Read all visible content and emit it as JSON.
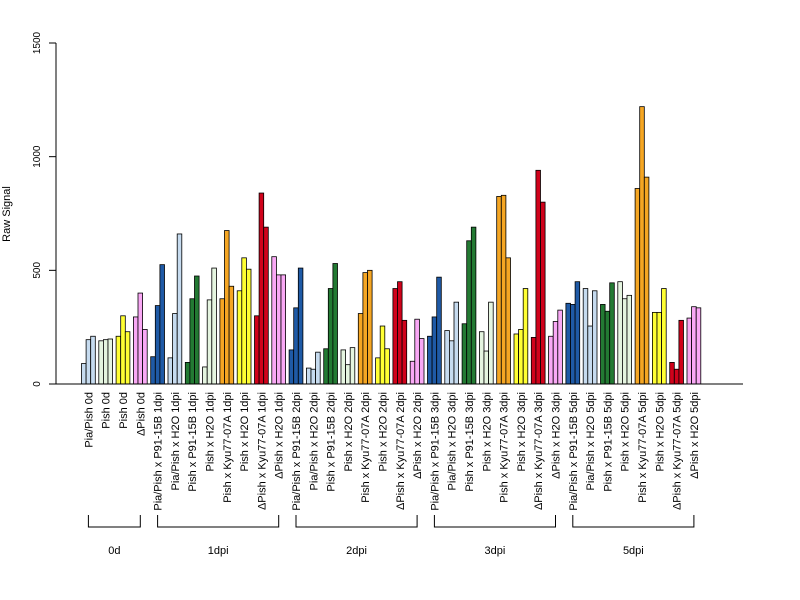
{
  "chart_data": {
    "type": "bar",
    "ylabel": "Raw Signal",
    "ylim": [
      0,
      1500
    ],
    "yticks": [
      0,
      500,
      1000,
      1500
    ],
    "grid": false,
    "legend": "none",
    "replicates_per_group": 3,
    "groups": [
      {
        "label": "Pia/Pish 0d",
        "color": "#c6dbef",
        "values": [
          90,
          195,
          210
        ]
      },
      {
        "label": "Pish 0d",
        "color": "#e5f5e0",
        "values": [
          190,
          195,
          198
        ]
      },
      {
        "label": "Pish 0d",
        "color": "#ffff33",
        "values": [
          210,
          300,
          230
        ]
      },
      {
        "label": "ΔPish 0d",
        "color": "#f9a8f5",
        "values": [
          295,
          400,
          240
        ]
      },
      {
        "label": "Pia/Pish x P91-15B 1dpi",
        "color": "#1f5aa6",
        "values": [
          120,
          345,
          525
        ]
      },
      {
        "label": "Pia/Pish x H2O 1dpi",
        "color": "#c6dbef",
        "values": [
          115,
          310,
          660
        ]
      },
      {
        "label": "Pish x P91-15B 1dpi",
        "color": "#237a33",
        "values": [
          95,
          375,
          475
        ]
      },
      {
        "label": "Pish x H2O 1dpi",
        "color": "#e5f5e0",
        "values": [
          75,
          370,
          510
        ]
      },
      {
        "label": "Pish x Kyu77-07A 1dpi",
        "color": "#f5a623",
        "values": [
          375,
          675,
          430
        ]
      },
      {
        "label": "Pish x H2O 1dpi",
        "color": "#ffff33",
        "values": [
          410,
          555,
          505
        ]
      },
      {
        "label": "ΔPish x Kyu77-07A 1dpi",
        "color": "#d0021b",
        "values": [
          300,
          840,
          690
        ]
      },
      {
        "label": "ΔPish x H2O 1dpi",
        "color": "#f9a8f5",
        "values": [
          560,
          480,
          480
        ]
      },
      {
        "label": "Pia/Pish x P91-15B 2dpi",
        "color": "#1f5aa6",
        "values": [
          150,
          335,
          510
        ]
      },
      {
        "label": "Pia/Pish x H2O 2dpi",
        "color": "#c6dbef",
        "values": [
          70,
          65,
          140
        ]
      },
      {
        "label": "Pish x P91-15B 2dpi",
        "color": "#237a33",
        "values": [
          155,
          420,
          530
        ]
      },
      {
        "label": "Pish x H2O 2dpi",
        "color": "#e5f5e0",
        "values": [
          150,
          85,
          160
        ]
      },
      {
        "label": "Pish x Kyu77-07A 2dpi",
        "color": "#f5a623",
        "values": [
          310,
          490,
          500
        ]
      },
      {
        "label": "Pish x H2O 2dpi",
        "color": "#ffff33",
        "values": [
          115,
          255,
          155
        ]
      },
      {
        "label": "ΔPish x Kyu77-07A 2dpi",
        "color": "#d0021b",
        "values": [
          420,
          450,
          280
        ]
      },
      {
        "label": "ΔPish x H2O 2dpi",
        "color": "#f9a8f5",
        "values": [
          100,
          285,
          200
        ]
      },
      {
        "label": "Pia/Pish x P91-15B 3dpi",
        "color": "#1f5aa6",
        "values": [
          210,
          295,
          470
        ]
      },
      {
        "label": "Pia/Pish x H2O 3dpi",
        "color": "#c6dbef",
        "values": [
          235,
          190,
          360
        ]
      },
      {
        "label": "Pish x P91-15B 3dpi",
        "color": "#237a33",
        "values": [
          265,
          630,
          690
        ]
      },
      {
        "label": "Pish x H2O 3dpi",
        "color": "#e5f5e0",
        "values": [
          230,
          145,
          360
        ]
      },
      {
        "label": "Pish x Kyu77-07A 3dpi",
        "color": "#f5a623",
        "values": [
          825,
          830,
          555
        ]
      },
      {
        "label": "Pish x H2O 3dpi",
        "color": "#ffff33",
        "values": [
          220,
          240,
          420
        ]
      },
      {
        "label": "ΔPish x Kyu77-07A 3dpi",
        "color": "#d0021b",
        "values": [
          205,
          940,
          800
        ]
      },
      {
        "label": "ΔPish x H2O 3dpi",
        "color": "#f9a8f5",
        "values": [
          210,
          275,
          325
        ]
      },
      {
        "label": "Pia/Pish x P91-15B 5dpi",
        "color": "#1f5aa6",
        "values": [
          355,
          350,
          450
        ]
      },
      {
        "label": "Pia/Pish x H2O 5dpi",
        "color": "#c6dbef",
        "values": [
          420,
          255,
          410
        ]
      },
      {
        "label": "Pish x P91-15B 5dpi",
        "color": "#237a33",
        "values": [
          350,
          320,
          445
        ]
      },
      {
        "label": "Pish x H2O 5dpi",
        "color": "#e5f5e0",
        "values": [
          450,
          375,
          390
        ]
      },
      {
        "label": "Pish x Kyu77-07A 5dpi",
        "color": "#f5a623",
        "values": [
          860,
          1220,
          910
        ]
      },
      {
        "label": "Pish x H2O 5dpi",
        "color": "#ffff33",
        "values": [
          315,
          315,
          420
        ]
      },
      {
        "label": "ΔPish x Kyu77-07A 5dpi",
        "color": "#d0021b",
        "values": [
          95,
          65,
          280
        ]
      },
      {
        "label": "ΔPish x H2O 5dpi",
        "color": "#f9a8f5",
        "values": [
          290,
          340,
          335
        ]
      }
    ],
    "timepoints": [
      {
        "label": "0d",
        "groups": [
          0,
          3
        ]
      },
      {
        "label": "1dpi",
        "groups": [
          4,
          11
        ]
      },
      {
        "label": "2dpi",
        "groups": [
          12,
          19
        ]
      },
      {
        "label": "3dpi",
        "groups": [
          20,
          27
        ]
      },
      {
        "label": "5dpi",
        "groups": [
          28,
          35
        ]
      }
    ]
  }
}
